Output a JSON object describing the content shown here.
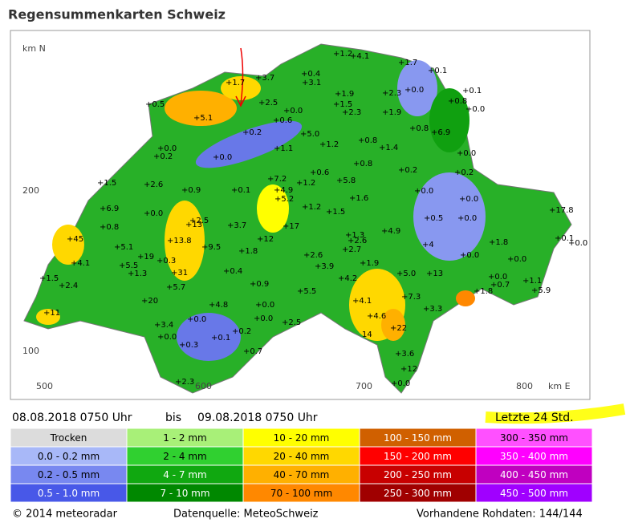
{
  "header": {
    "title": "Regensummenkarten Schweiz"
  },
  "map": {
    "axis_labels": {
      "north": "km N",
      "east": "km E",
      "y200": "200",
      "y100": "100",
      "x500": "500",
      "x600": "600",
      "x700": "700",
      "x800": "800"
    },
    "stations": [
      "+1.2",
      "+4.1",
      "+1.7",
      "+0.1",
      "+3.7",
      "+0.4",
      "+3.1",
      "+1.7",
      "+1.9",
      "+2.3",
      "+0.0",
      "+0.1",
      "+0.8",
      "+0.0",
      "+0.5",
      "+2.5",
      "+0.0",
      "+1.5",
      "+0.6",
      "+2.3",
      "+1.9",
      "+5.1",
      "+0.8",
      "+6.9",
      "+5.0",
      "+0.2",
      "+1.2",
      "+0.8",
      "+0.0",
      "+1.1",
      "+1.4",
      "+0.0",
      "+0.2",
      "+0.0",
      "+0.8",
      "+0.2",
      "+0.2",
      "+1.5",
      "+7.2",
      "+0.6",
      "+5.8",
      "+2.6",
      "+0.9",
      "+0.1",
      "+4.9",
      "+1.2",
      "+0.0",
      "+1.6",
      "+5.2",
      "+0.0",
      "+17.8",
      "+6.9",
      "+1.2",
      "+1.5",
      "+0.0",
      "+2.5",
      "+0.0",
      "+0.8",
      "+13",
      "+3.7",
      "+17",
      "+0.5",
      "+45",
      "+1.3",
      "+4.9",
      "+0.1",
      "+0.0",
      "+12",
      "+2.6",
      "+1.8",
      "+5.1",
      "+13.8",
      "+9.5",
      "+1.8",
      "+2.7",
      "+4",
      "+19",
      "+4.1",
      "+5.5",
      "+0.3",
      "+2.6",
      "+0.0",
      "+0.0",
      "+1.9",
      "+3.9",
      "+31",
      "+1.3",
      "+0.4",
      "+1.5",
      "+2.4",
      "+0.9",
      "+4.2",
      "+5.0",
      "+13",
      "+0.0",
      "+0.7",
      "+1.1",
      "+5.7",
      "+1.8",
      "+5.9",
      "+5.5",
      "+20",
      "+4.1",
      "+7.3",
      "+0.0",
      "+4.8",
      "+11",
      "+3.3",
      "+0.0",
      "+0.0",
      "+2.5",
      "+4.6",
      "+3.4",
      "+0.2",
      "+22",
      "+0.0",
      "+0.1",
      "14",
      "+0.3",
      "+0.7",
      "+3.6",
      "+12",
      "+0.0",
      "+2.3"
    ]
  },
  "period": {
    "from": "08.08.2018 0750 Uhr",
    "bis": "bis",
    "to": "09.08.2018 0750 Uhr",
    "span": "Letzte 24 Std."
  },
  "legend": {
    "columns": [
      [
        {
          "label": "Trocken",
          "color": "#dcdcdc"
        },
        {
          "label": "0.0 - 0.2 mm",
          "color": "#a8b8f8"
        },
        {
          "label": "0.2 - 0.5 mm",
          "color": "#7888f0"
        },
        {
          "label": "0.5 - 1.0 mm",
          "color": "#4858e8"
        }
      ],
      [
        {
          "label": "1 - 2 mm",
          "color": "#a8f078"
        },
        {
          "label": "2 - 4 mm",
          "color": "#30d030"
        },
        {
          "label": "4 - 7 mm",
          "color": "#10a810"
        },
        {
          "label": "7 - 10 mm",
          "color": "#008800"
        }
      ],
      [
        {
          "label": "10 - 20 mm",
          "color": "#ffff00"
        },
        {
          "label": "20 - 40 mm",
          "color": "#ffd800"
        },
        {
          "label": "40 - 70 mm",
          "color": "#ffb000"
        },
        {
          "label": "70 - 100 mm",
          "color": "#ff8800"
        }
      ],
      [
        {
          "label": "100 - 150 mm",
          "color": "#d06000"
        },
        {
          "label": "150 - 200 mm",
          "color": "#ff0000"
        },
        {
          "label": "200 - 250 mm",
          "color": "#c80000"
        },
        {
          "label": "250 - 300 mm",
          "color": "#a00000"
        }
      ],
      [
        {
          "label": "300 - 350 mm",
          "color": "#ff50ff"
        },
        {
          "label": "350 - 400 mm",
          "color": "#ff00ff"
        },
        {
          "label": "400 - 450 mm",
          "color": "#c000c0"
        },
        {
          "label": "450 - 500 mm",
          "color": "#a000ff"
        }
      ]
    ]
  },
  "footer": {
    "copyright": "© 2014 meteoradar",
    "source": "Datenquelle: MeteoSchweiz",
    "raw": "Vorhandene Rohdaten: 144/144"
  }
}
